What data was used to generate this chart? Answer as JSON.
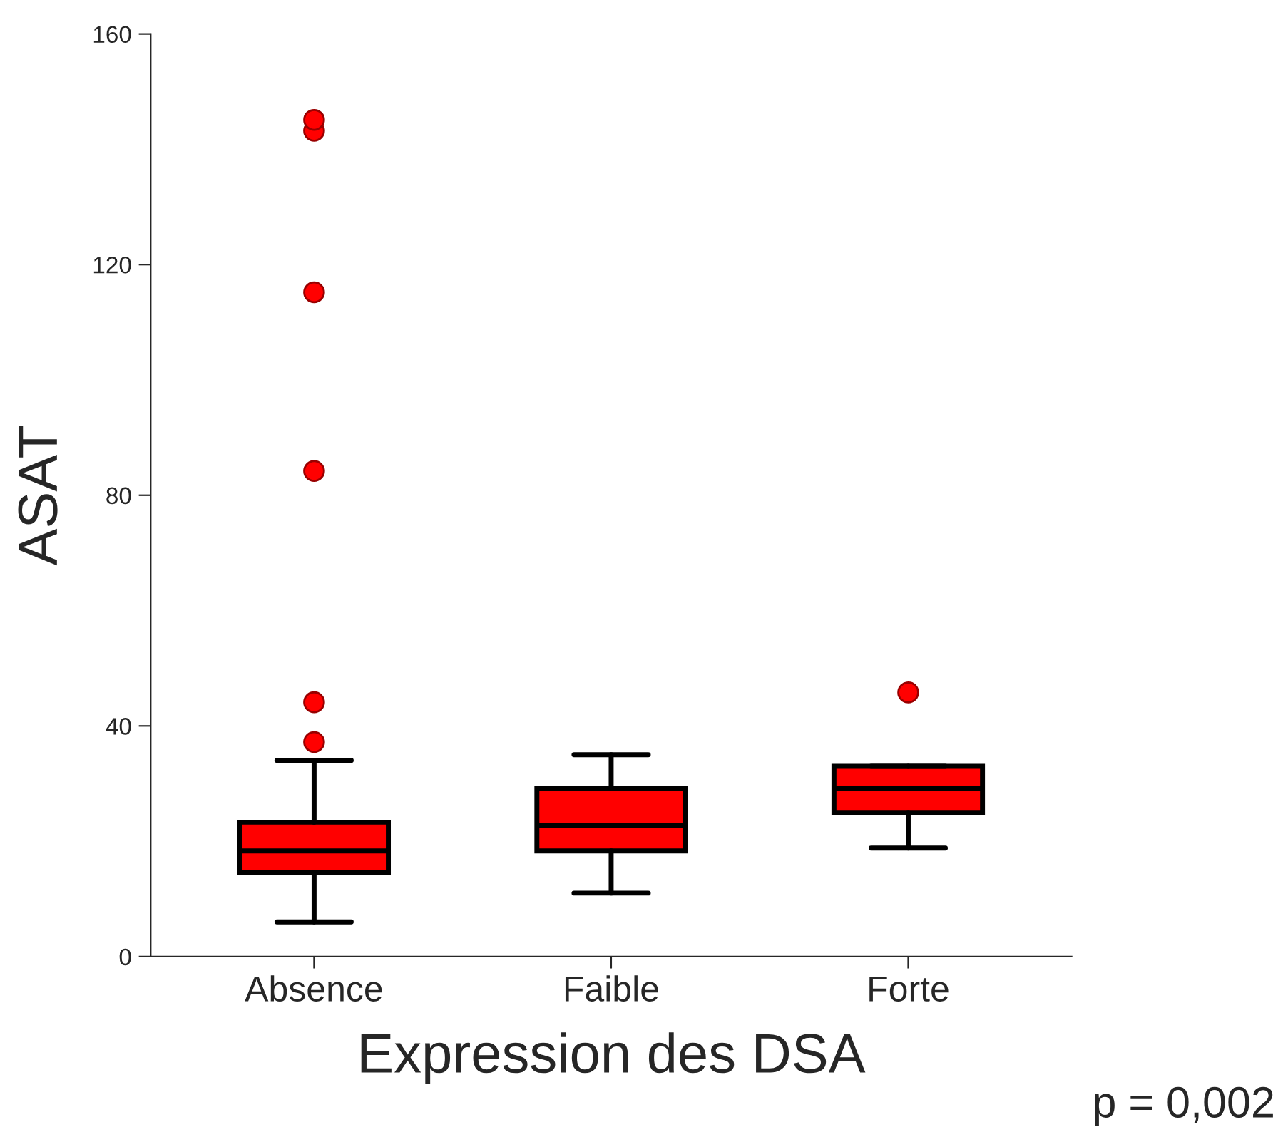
{
  "chart_data": {
    "type": "box",
    "xlabel": "Expression des DSA",
    "ylabel": "ASAT",
    "categories": [
      "Absence",
      "Faible",
      "Forte"
    ],
    "color": "#ff0000",
    "boxes": [
      {
        "low": 6,
        "q1": 14.6,
        "median": 18.3,
        "q3": 23.3,
        "high": 34,
        "outliers": [
          37.2,
          44.1,
          84.2,
          115.2,
          143.2,
          145.1
        ]
      },
      {
        "low": 11,
        "q1": 18.3,
        "median": 22.8,
        "q3": 29.2,
        "high": 35
      },
      {
        "low": 18.8,
        "q1": 25,
        "median": 29.2,
        "q3": 33,
        "high": 33,
        "outliers": [
          45.8
        ]
      }
    ],
    "ylim": [
      0,
      160
    ],
    "yticks": [
      0,
      40,
      80,
      120,
      160
    ],
    "grid": false,
    "annotations": [
      "p = 0,002"
    ]
  }
}
